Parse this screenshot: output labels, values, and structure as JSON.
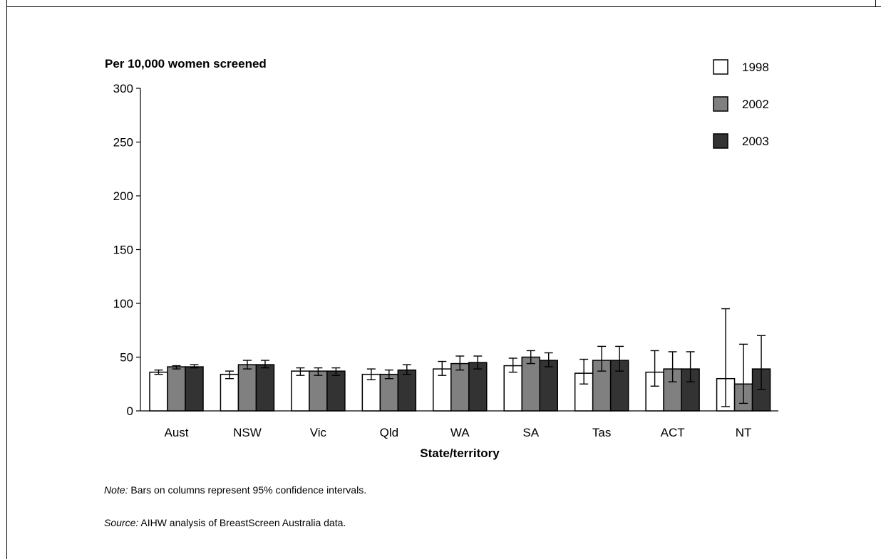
{
  "chart_data": {
    "type": "bar",
    "title": "",
    "ylabel": "Per 10,000 women screened",
    "xlabel": "State/territory",
    "ylim": [
      0,
      300
    ],
    "yticks": [
      0,
      50,
      100,
      150,
      200,
      250,
      300
    ],
    "categories": [
      "Aust",
      "NSW",
      "Vic",
      "Qld",
      "WA",
      "SA",
      "Tas",
      "ACT",
      "NT"
    ],
    "legend_position": "top-right",
    "grid": false,
    "series": [
      {
        "name": "1998",
        "color": "#ffffff",
        "values": [
          36,
          34,
          37,
          34,
          39,
          42,
          35,
          36,
          30
        ],
        "ci_low": [
          34,
          30,
          33,
          29,
          33,
          36,
          25,
          23,
          4
        ],
        "ci_high": [
          38,
          37,
          40,
          39,
          46,
          49,
          48,
          56,
          95
        ]
      },
      {
        "name": "2002",
        "color": "#808080",
        "values": [
          41,
          43,
          37,
          34,
          44,
          50,
          47,
          39,
          25
        ],
        "ci_low": [
          39,
          39,
          33,
          30,
          38,
          44,
          37,
          27,
          7
        ],
        "ci_high": [
          42,
          47,
          40,
          38,
          51,
          56,
          60,
          55,
          62
        ]
      },
      {
        "name": "2003",
        "color": "#333333",
        "values": [
          41,
          43,
          37,
          38,
          45,
          47,
          47,
          39,
          39
        ],
        "ci_low": [
          40,
          40,
          33,
          34,
          39,
          41,
          37,
          27,
          20
        ],
        "ci_high": [
          43,
          47,
          40,
          43,
          51,
          54,
          60,
          55,
          70
        ]
      }
    ]
  },
  "notes": {
    "note_label": "Note:",
    "note_text": " Bars on columns represent 95% confidence intervals.",
    "source_label": "Source:",
    "source_text": " AIHW analysis of BreastScreen Australia data."
  }
}
